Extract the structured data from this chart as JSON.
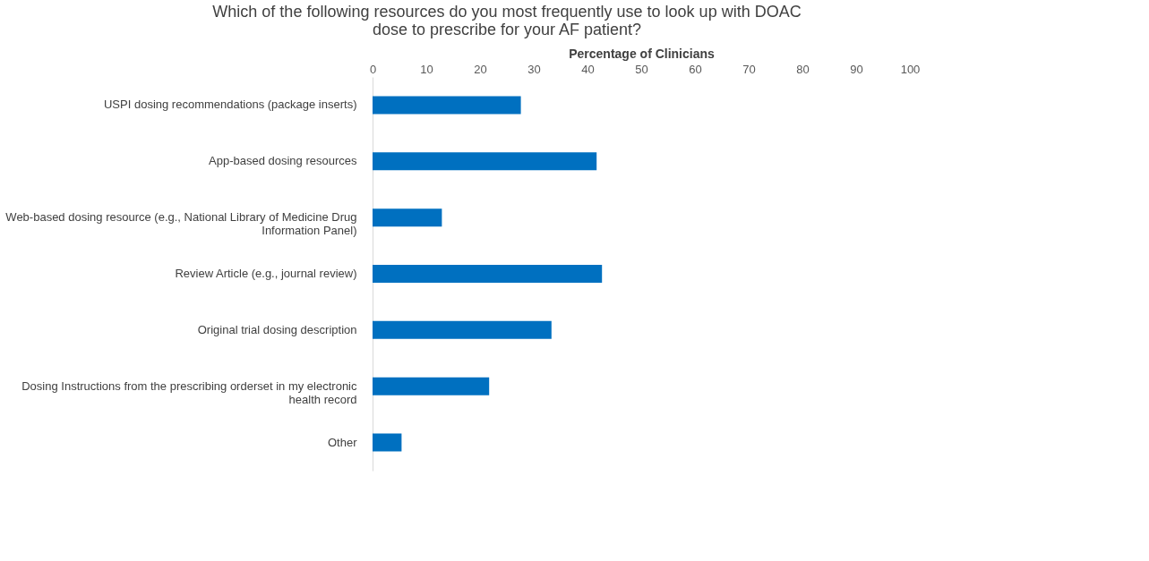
{
  "chart_data": {
    "type": "bar",
    "orientation": "horizontal",
    "title": "Which of the following resources do you most frequently use to look up with DOAC dose to prescribe for your AF patient?",
    "xlabel": "Percentage of Clinicians",
    "categories": [
      "USPI dosing recommendations (package inserts)",
      "App-based dosing resources",
      "Web-based dosing resource (e.g., National Library of Medicine Drug Information Panel)",
      "Review Article (e.g., journal review)",
      "Original trial dosing description",
      "Dosing Instructions from the prescribing orderset in my electronic health record",
      "Other"
    ],
    "values": [
      27.6,
      41.7,
      12.9,
      42.7,
      33.3,
      21.7,
      5.4
    ],
    "color": "#0070c0",
    "xlim": [
      0,
      100
    ],
    "xticks": [
      0,
      10,
      20,
      30,
      40,
      50,
      60,
      70,
      80,
      90,
      100
    ],
    "grid": false
  }
}
